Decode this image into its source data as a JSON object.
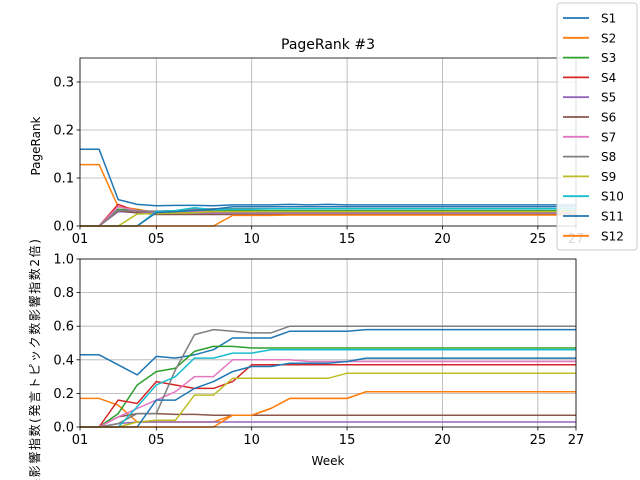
{
  "colors": [
    "#1f77b4",
    "#ff7f0e",
    "#2ca02c",
    "#d62728",
    "#9467bd",
    "#8c564b",
    "#e377c2",
    "#7f7f7f",
    "#bcbd22",
    "#17becf",
    "#1f77b4",
    "#ff7f0e"
  ],
  "legend": {
    "placement": "top-right",
    "entries": [
      "S1",
      "S2",
      "S3",
      "S4",
      "S5",
      "S6",
      "S7",
      "S8",
      "S9",
      "S10",
      "S11",
      "S12"
    ]
  },
  "chart_data": [
    {
      "type": "line",
      "title": "PageRank #3",
      "xlabel": "",
      "ylabel": "PageRank",
      "xlim": [
        1,
        27
      ],
      "ylim": [
        0,
        0.35
      ],
      "grid": true,
      "xticks": [
        1,
        5,
        10,
        15,
        20,
        25,
        27
      ],
      "xtick_labels": [
        "01",
        "05",
        "10",
        "15",
        "20",
        "25",
        "27"
      ],
      "yticks": [
        0,
        0.1,
        0.2,
        0.3
      ],
      "ytick_labels": [
        "0.0",
        "0.1",
        "0.2",
        "0.3"
      ],
      "x": [
        1,
        2,
        3,
        4,
        5,
        6,
        7,
        8,
        9,
        10,
        11,
        12,
        13,
        14,
        15,
        16,
        17,
        18,
        19,
        20,
        21,
        22,
        23,
        24,
        25,
        26,
        27
      ],
      "series": [
        {
          "name": "S1",
          "values": [
            0.16,
            0.16,
            0.055,
            0.045,
            0.042,
            0.043,
            0.043,
            0.042,
            0.044,
            0.044,
            0.044,
            0.045,
            0.044,
            0.045,
            0.044,
            0.044,
            0.044,
            0.044,
            0.044,
            0.044,
            0.044,
            0.044,
            0.044,
            0.044,
            0.044,
            0.044,
            0.044
          ]
        },
        {
          "name": "S2",
          "values": [
            0.128,
            0.128,
            0.04,
            0.035,
            0.028,
            0.028,
            0.028,
            0.028,
            0.028,
            0.028,
            0.028,
            0.028,
            0.028,
            0.028,
            0.028,
            0.028,
            0.028,
            0.028,
            0.028,
            0.028,
            0.028,
            0.028,
            0.028,
            0.028,
            0.028,
            0.028,
            0.028
          ]
        },
        {
          "name": "S3",
          "values": [
            0,
            0,
            0.035,
            0.033,
            0.028,
            0.03,
            0.03,
            0.032,
            0.032,
            0.032,
            0.032,
            0.032,
            0.032,
            0.032,
            0.032,
            0.032,
            0.032,
            0.032,
            0.032,
            0.032,
            0.032,
            0.032,
            0.032,
            0.032,
            0.032,
            0.032,
            0.032
          ]
        },
        {
          "name": "S4",
          "values": [
            0,
            0,
            0.045,
            0.03,
            0.029,
            0.029,
            0.029,
            0.029,
            0.029,
            0.029,
            0.029,
            0.029,
            0.029,
            0.029,
            0.029,
            0.029,
            0.029,
            0.029,
            0.029,
            0.029,
            0.029,
            0.029,
            0.029,
            0.029,
            0.029,
            0.029,
            0.029
          ]
        },
        {
          "name": "S5",
          "values": [
            0,
            0,
            0.03,
            0.028,
            0.027,
            0.027,
            0.027,
            0.027,
            0.027,
            0.027,
            0.027,
            0.027,
            0.027,
            0.027,
            0.027,
            0.027,
            0.027,
            0.027,
            0.027,
            0.027,
            0.027,
            0.027,
            0.027,
            0.027,
            0.027,
            0.027,
            0.027
          ]
        },
        {
          "name": "S6",
          "values": [
            0,
            0,
            0.032,
            0.027,
            0.024,
            0.024,
            0.024,
            0.024,
            0.024,
            0.024,
            0.024,
            0.024,
            0.024,
            0.024,
            0.024,
            0.024,
            0.024,
            0.024,
            0.024,
            0.024,
            0.024,
            0.024,
            0.024,
            0.024,
            0.024,
            0.024,
            0.024
          ]
        },
        {
          "name": "S7",
          "values": [
            0,
            0,
            0.04,
            0.032,
            0.03,
            0.03,
            0.03,
            0.03,
            0.03,
            0.03,
            0.03,
            0.03,
            0.03,
            0.03,
            0.03,
            0.03,
            0.03,
            0.03,
            0.03,
            0.03,
            0.03,
            0.03,
            0.03,
            0.03,
            0.03,
            0.03,
            0.03
          ]
        },
        {
          "name": "S8",
          "values": [
            0,
            0,
            0.033,
            0.031,
            0.031,
            0.032,
            0.035,
            0.036,
            0.036,
            0.036,
            0.036,
            0.036,
            0.036,
            0.036,
            0.036,
            0.036,
            0.036,
            0.036,
            0.036,
            0.036,
            0.036,
            0.036,
            0.036,
            0.036,
            0.036,
            0.036,
            0.036
          ]
        },
        {
          "name": "S9",
          "values": [
            0,
            0,
            0,
            0.025,
            0.026,
            0.027,
            0.028,
            0.03,
            0.03,
            0.03,
            0.03,
            0.03,
            0.03,
            0.03,
            0.03,
            0.03,
            0.03,
            0.03,
            0.03,
            0.03,
            0.03,
            0.03,
            0.03,
            0.03,
            0.03,
            0.03,
            0.03
          ]
        },
        {
          "name": "S10",
          "values": [
            0,
            0,
            0,
            0,
            0.03,
            0.032,
            0.038,
            0.034,
            0.035,
            0.035,
            0.036,
            0.036,
            0.036,
            0.036,
            0.036,
            0.036,
            0.036,
            0.036,
            0.036,
            0.036,
            0.036,
            0.036,
            0.036,
            0.036,
            0.036,
            0.036,
            0.036
          ]
        },
        {
          "name": "S11",
          "values": [
            0,
            0,
            0,
            0,
            0.028,
            0.03,
            0.032,
            0.035,
            0.04,
            0.04,
            0.04,
            0.04,
            0.04,
            0.04,
            0.04,
            0.04,
            0.04,
            0.04,
            0.04,
            0.04,
            0.04,
            0.04,
            0.04,
            0.04,
            0.04,
            0.04,
            0.04
          ]
        },
        {
          "name": "S12",
          "values": [
            0,
            0,
            0,
            0,
            0,
            0,
            0,
            0,
            0.022,
            0.022,
            0.022,
            0.023,
            0.023,
            0.023,
            0.023,
            0.023,
            0.023,
            0.023,
            0.023,
            0.023,
            0.023,
            0.023,
            0.023,
            0.023,
            0.023,
            0.023,
            0.023
          ]
        }
      ]
    },
    {
      "type": "line",
      "title": "",
      "xlabel": "Week",
      "ylabel": "実影響指数(発言トピック数影響指数2倍)",
      "xlim": [
        1,
        27
      ],
      "ylim": [
        0,
        1.0
      ],
      "grid": true,
      "xticks": [
        1,
        5,
        10,
        15,
        20,
        25,
        27
      ],
      "xtick_labels": [
        "01",
        "05",
        "10",
        "15",
        "20",
        "25",
        "27"
      ],
      "yticks": [
        0,
        0.2,
        0.4,
        0.6,
        0.8,
        1.0
      ],
      "ytick_labels": [
        "0.0",
        "0.2",
        "0.4",
        "0.6",
        "0.8",
        "1.0"
      ],
      "x": [
        1,
        2,
        3,
        4,
        5,
        6,
        7,
        8,
        9,
        10,
        11,
        12,
        13,
        14,
        15,
        16,
        17,
        18,
        19,
        20,
        21,
        22,
        23,
        24,
        25,
        26,
        27
      ],
      "series": [
        {
          "name": "S1",
          "values": [
            0.43,
            0.43,
            0.37,
            0.31,
            0.42,
            0.41,
            0.43,
            0.46,
            0.53,
            0.53,
            0.53,
            0.57,
            0.57,
            0.57,
            0.57,
            0.58,
            0.58,
            0.58,
            0.58,
            0.58,
            0.58,
            0.58,
            0.58,
            0.58,
            0.58,
            0.58,
            0.58
          ]
        },
        {
          "name": "S2",
          "values": [
            0.17,
            0.17,
            0.13,
            0.03,
            0.03,
            0.03,
            0.03,
            0.03,
            0.07,
            0.07,
            0.11,
            0.17,
            0.17,
            0.17,
            0.17,
            0.21,
            0.21,
            0.21,
            0.21,
            0.21,
            0.21,
            0.21,
            0.21,
            0.21,
            0.21,
            0.21,
            0.21
          ]
        },
        {
          "name": "S3",
          "values": [
            0,
            0,
            0.08,
            0.25,
            0.33,
            0.35,
            0.45,
            0.48,
            0.48,
            0.47,
            0.47,
            0.47,
            0.47,
            0.47,
            0.47,
            0.47,
            0.47,
            0.47,
            0.47,
            0.47,
            0.47,
            0.47,
            0.47,
            0.47,
            0.47,
            0.47,
            0.47
          ]
        },
        {
          "name": "S4",
          "values": [
            0,
            0,
            0.16,
            0.14,
            0.27,
            0.25,
            0.23,
            0.23,
            0.27,
            0.37,
            0.37,
            0.37,
            0.37,
            0.37,
            0.37,
            0.37,
            0.37,
            0.37,
            0.37,
            0.37,
            0.37,
            0.37,
            0.37,
            0.37,
            0.37,
            0.37,
            0.37
          ]
        },
        {
          "name": "S5",
          "values": [
            0,
            0,
            0.02,
            0.03,
            0.03,
            0.03,
            0.03,
            0.03,
            0.03,
            0.03,
            0.03,
            0.03,
            0.03,
            0.03,
            0.03,
            0.03,
            0.03,
            0.03,
            0.03,
            0.03,
            0.03,
            0.03,
            0.03,
            0.03,
            0.03,
            0.03,
            0.03
          ]
        },
        {
          "name": "S6",
          "values": [
            0,
            0,
            0.06,
            0.08,
            0.08,
            0.075,
            0.075,
            0.07,
            0.07,
            0.07,
            0.07,
            0.07,
            0.07,
            0.07,
            0.07,
            0.07,
            0.07,
            0.07,
            0.07,
            0.07,
            0.07,
            0.07,
            0.07,
            0.07,
            0.07,
            0.07,
            0.07
          ]
        },
        {
          "name": "S7",
          "values": [
            0,
            0,
            0.06,
            0.11,
            0.16,
            0.21,
            0.3,
            0.3,
            0.4,
            0.4,
            0.4,
            0.4,
            0.39,
            0.39,
            0.39,
            0.39,
            0.39,
            0.39,
            0.39,
            0.39,
            0.39,
            0.39,
            0.39,
            0.39,
            0.39,
            0.39,
            0.39
          ]
        },
        {
          "name": "S8",
          "values": [
            0,
            0,
            0.02,
            0.08,
            0.08,
            0.34,
            0.55,
            0.58,
            0.57,
            0.56,
            0.56,
            0.6,
            0.6,
            0.6,
            0.6,
            0.6,
            0.6,
            0.6,
            0.6,
            0.6,
            0.6,
            0.6,
            0.6,
            0.6,
            0.6,
            0.6,
            0.6
          ]
        },
        {
          "name": "S9",
          "values": [
            0,
            0,
            0,
            0.03,
            0.04,
            0.04,
            0.19,
            0.19,
            0.29,
            0.29,
            0.29,
            0.29,
            0.29,
            0.29,
            0.32,
            0.32,
            0.32,
            0.32,
            0.32,
            0.32,
            0.32,
            0.32,
            0.32,
            0.32,
            0.32,
            0.32,
            0.32
          ]
        },
        {
          "name": "S10",
          "values": [
            0,
            0,
            0,
            0.12,
            0.25,
            0.3,
            0.41,
            0.41,
            0.44,
            0.44,
            0.46,
            0.46,
            0.46,
            0.46,
            0.46,
            0.46,
            0.46,
            0.46,
            0.46,
            0.46,
            0.46,
            0.46,
            0.46,
            0.46,
            0.46,
            0.46,
            0.46
          ]
        },
        {
          "name": "S11",
          "values": [
            0,
            0,
            0,
            0,
            0.16,
            0.16,
            0.23,
            0.27,
            0.33,
            0.36,
            0.36,
            0.38,
            0.38,
            0.38,
            0.39,
            0.41,
            0.41,
            0.41,
            0.41,
            0.41,
            0.41,
            0.41,
            0.41,
            0.41,
            0.41,
            0.41,
            0.41
          ]
        },
        {
          "name": "S12",
          "values": [
            0,
            0,
            0,
            0,
            0,
            0,
            0,
            0,
            0.07,
            0.07,
            0.11,
            0.17,
            0.17,
            0.17,
            0.17,
            0.21,
            0.21,
            0.21,
            0.21,
            0.21,
            0.21,
            0.21,
            0.21,
            0.21,
            0.21,
            0.21,
            0.21
          ]
        }
      ]
    }
  ]
}
